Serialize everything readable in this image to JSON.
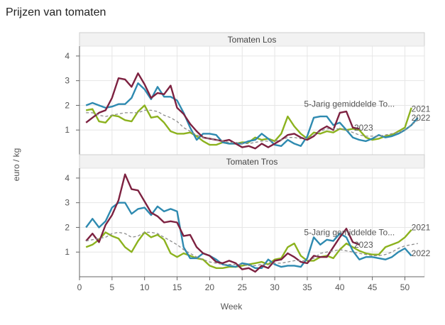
{
  "chart_data": {
    "type": "line",
    "title": "Prijzen van tomaten",
    "xlabel": "Week",
    "ylabel": "euro / kg",
    "xlim": [
      0,
      53
    ],
    "ylim": [
      0,
      4.4
    ],
    "xticks": [
      0,
      5,
      10,
      15,
      20,
      25,
      30,
      35,
      40,
      45,
      50
    ],
    "yticks": [
      1,
      2,
      3,
      4
    ],
    "grid": true,
    "legend": "end-of-line labels",
    "colors": {
      "2021": "#8cb21e",
      "2022": "#2e8ab0",
      "2023": "#7d2140",
      "5-Jarig gemiddelde Tomaten": "#8c8c8c"
    },
    "panels": [
      {
        "name": "Tomaten Los",
        "series": [
          {
            "name": "2021",
            "x": [
              1,
              2,
              3,
              4,
              5,
              6,
              7,
              8,
              9,
              10,
              11,
              12,
              13,
              14,
              15,
              16,
              17,
              18,
              19,
              20,
              21,
              22,
              23,
              24,
              25,
              26,
              27,
              28,
              29,
              30,
              31,
              32,
              33,
              34,
              35,
              36,
              37,
              38,
              39,
              40,
              41,
              42,
              43,
              44,
              45,
              46,
              47,
              48,
              49,
              50,
              51
            ],
            "y": [
              1.8,
              1.85,
              1.35,
              1.3,
              1.6,
              1.55,
              1.4,
              1.35,
              1.75,
              2.0,
              1.5,
              1.55,
              1.3,
              0.95,
              0.85,
              0.85,
              0.9,
              0.75,
              0.55,
              0.4,
              0.4,
              0.5,
              0.45,
              0.45,
              0.5,
              0.5,
              0.7,
              0.6,
              0.65,
              0.55,
              0.85,
              1.55,
              1.15,
              0.85,
              0.65,
              0.9,
              0.85,
              0.95,
              0.9,
              1.05,
              1.0,
              1.05,
              1.0,
              0.7,
              0.6,
              0.65,
              0.75,
              0.8,
              0.95,
              1.1,
              1.9
            ]
          },
          {
            "name": "2022",
            "x": [
              1,
              2,
              3,
              4,
              5,
              6,
              7,
              8,
              9,
              10,
              11,
              12,
              13,
              14,
              15,
              16,
              17,
              18,
              19,
              20,
              21,
              22,
              23,
              24,
              25,
              26,
              27,
              28,
              29,
              30,
              31,
              32,
              33,
              34,
              35,
              36,
              37,
              38,
              39,
              40,
              41,
              42,
              43,
              44,
              45,
              46,
              47,
              48,
              49,
              50,
              51,
              52
            ],
            "y": [
              2.0,
              2.1,
              2.0,
              1.9,
              1.95,
              2.05,
              2.05,
              2.3,
              2.9,
              2.65,
              2.25,
              2.75,
              2.35,
              2.35,
              2.2,
              1.7,
              1.1,
              0.6,
              0.85,
              0.85,
              0.8,
              0.5,
              0.45,
              0.45,
              0.45,
              0.55,
              0.6,
              0.85,
              0.65,
              0.4,
              0.35,
              0.6,
              0.45,
              0.35,
              0.75,
              1.5,
              1.55,
              1.55,
              1.2,
              1.3,
              1.0,
              0.7,
              0.6,
              0.55,
              0.65,
              0.8,
              0.7,
              0.75,
              0.85,
              1.0,
              1.2,
              1.5
            ]
          },
          {
            "name": "2023",
            "x": [
              1,
              2,
              3,
              4,
              5,
              6,
              7,
              8,
              9,
              10,
              11,
              12,
              13,
              14,
              15,
              16,
              17,
              18,
              19,
              20,
              21,
              22,
              23,
              24,
              25,
              26,
              27,
              28,
              29,
              30,
              31,
              32,
              33,
              34,
              35,
              36,
              37,
              38,
              39,
              40,
              41,
              42,
              43,
              44
            ],
            "y": [
              1.3,
              1.5,
              1.7,
              1.8,
              2.3,
              3.1,
              3.05,
              2.75,
              3.3,
              2.85,
              2.3,
              2.5,
              2.45,
              2.8,
              1.9,
              1.65,
              1.25,
              0.95,
              0.7,
              0.65,
              0.6,
              0.55,
              0.6,
              0.45,
              0.3,
              0.35,
              0.25,
              0.45,
              0.3,
              0.45,
              0.6,
              0.8,
              0.85,
              0.7,
              0.6,
              0.75,
              1.0,
              1.15,
              1.0,
              1.7,
              1.75,
              1.1,
              1.05,
              null
            ]
          },
          {
            "name": "5-Jarig gemiddelde Tomaten",
            "x": [
              1,
              2,
              3,
              4,
              5,
              6,
              7,
              8,
              9,
              10,
              11,
              12,
              13,
              14,
              15,
              16,
              17,
              18,
              19,
              20,
              21,
              22,
              23,
              24,
              25,
              26,
              27,
              28,
              29,
              30,
              31,
              32,
              33,
              34,
              35,
              36,
              37,
              38,
              39,
              40,
              41,
              42,
              43,
              44,
              45,
              46,
              47,
              48,
              49,
              50,
              51,
              52
            ],
            "y": [
              1.7,
              1.7,
              1.6,
              1.55,
              1.6,
              1.65,
              1.7,
              1.7,
              1.7,
              1.8,
              1.8,
              1.75,
              1.6,
              1.5,
              1.35,
              1.1,
              0.95,
              0.8,
              0.7,
              0.65,
              0.6,
              0.55,
              0.5,
              0.5,
              0.45,
              0.45,
              0.5,
              0.55,
              0.55,
              0.55,
              0.6,
              0.7,
              0.7,
              0.65,
              0.65,
              0.8,
              0.95,
              1.05,
              1.05,
              1.05,
              1.0,
              0.9,
              0.8,
              0.75,
              0.75,
              0.75,
              0.8,
              0.85,
              0.9,
              1.0,
              1.2,
              1.4
            ]
          }
        ]
      },
      {
        "name": "Tomaten Tros",
        "series": [
          {
            "name": "2021",
            "x": [
              1,
              2,
              3,
              4,
              5,
              6,
              7,
              8,
              9,
              10,
              11,
              12,
              13,
              14,
              15,
              16,
              17,
              18,
              19,
              20,
              21,
              22,
              23,
              24,
              25,
              26,
              27,
              28,
              29,
              30,
              31,
              32,
              33,
              34,
              35,
              36,
              37,
              38,
              39,
              40,
              41,
              42,
              43,
              44,
              45,
              46,
              47,
              48,
              49,
              50,
              51
            ],
            "y": [
              1.2,
              1.3,
              1.5,
              1.8,
              1.65,
              1.55,
              1.2,
              1.0,
              1.45,
              1.8,
              1.6,
              1.7,
              1.5,
              0.95,
              0.8,
              0.95,
              0.85,
              0.75,
              0.7,
              0.45,
              0.35,
              0.35,
              0.4,
              0.4,
              0.45,
              0.5,
              0.55,
              0.6,
              0.5,
              0.7,
              0.75,
              1.2,
              1.35,
              0.85,
              0.65,
              0.65,
              0.8,
              0.85,
              0.75,
              1.1,
              1.35,
              1.2,
              1.05,
              0.95,
              0.9,
              0.9,
              1.2,
              1.3,
              1.4,
              1.6,
              1.9
            ]
          },
          {
            "name": "2022",
            "x": [
              1,
              2,
              3,
              4,
              5,
              6,
              7,
              8,
              9,
              10,
              11,
              12,
              13,
              14,
              15,
              16,
              17,
              18,
              19,
              20,
              21,
              22,
              23,
              24,
              25,
              26,
              27,
              28,
              29,
              30,
              31,
              32,
              33,
              34,
              35,
              36,
              37,
              38,
              39,
              40,
              41,
              42,
              43,
              44,
              45,
              46,
              47,
              48,
              49,
              50,
              51
            ],
            "y": [
              2.0,
              2.35,
              2.0,
              2.25,
              2.8,
              3.0,
              3.0,
              2.55,
              2.75,
              2.8,
              2.5,
              2.85,
              2.65,
              2.75,
              2.65,
              1.2,
              0.75,
              0.75,
              0.95,
              0.85,
              0.7,
              0.5,
              0.45,
              0.4,
              0.55,
              0.5,
              0.35,
              0.35,
              0.7,
              0.5,
              0.4,
              0.45,
              0.45,
              0.4,
              0.75,
              1.6,
              1.3,
              1.5,
              1.45,
              1.75,
              1.6,
              1.05,
              0.7,
              0.8,
              0.8,
              0.75,
              0.7,
              0.8,
              1.0,
              1.15,
              0.85
            ]
          },
          {
            "name": "2023",
            "x": [
              1,
              2,
              3,
              4,
              5,
              6,
              7,
              8,
              9,
              10,
              11,
              12,
              13,
              14,
              15,
              16,
              17,
              18,
              19,
              20,
              21,
              22,
              23,
              24,
              25,
              26,
              27,
              28,
              29,
              30,
              31,
              32,
              33,
              34,
              35,
              36,
              37,
              38,
              39,
              40,
              41,
              42,
              43,
              44
            ],
            "y": [
              1.45,
              1.75,
              1.4,
              2.1,
              2.5,
              3.1,
              4.15,
              3.55,
              3.5,
              3.05,
              2.6,
              2.45,
              2.2,
              2.25,
              2.2,
              1.65,
              1.7,
              1.2,
              0.95,
              0.85,
              0.6,
              0.55,
              0.65,
              0.55,
              0.3,
              0.35,
              0.2,
              0.45,
              0.35,
              0.65,
              0.7,
              0.95,
              0.8,
              0.6,
              0.55,
              0.85,
              0.8,
              0.8,
              1.2,
              1.6,
              1.95,
              1.4,
              1.3,
              null
            ]
          },
          {
            "name": "5-Jarig gemiddelde Tomaten",
            "x": [
              1,
              2,
              3,
              4,
              5,
              6,
              7,
              8,
              9,
              10,
              11,
              12,
              13,
              14,
              15,
              16,
              17,
              18,
              19,
              20,
              21,
              22,
              23,
              24,
              25,
              26,
              27,
              28,
              29,
              30,
              31,
              32,
              33,
              34,
              35,
              36,
              37,
              38,
              39,
              40,
              41,
              42,
              43,
              44,
              45,
              46,
              47,
              48,
              49,
              50,
              51,
              52
            ],
            "y": [
              1.45,
              1.5,
              1.55,
              1.6,
              1.75,
              1.8,
              1.75,
              1.6,
              1.65,
              1.8,
              1.8,
              1.75,
              1.6,
              1.45,
              1.3,
              1.1,
              0.95,
              0.8,
              0.7,
              0.6,
              0.55,
              0.5,
              0.5,
              0.5,
              0.5,
              0.45,
              0.45,
              0.5,
              0.5,
              0.55,
              0.55,
              0.6,
              0.65,
              0.65,
              0.65,
              0.75,
              0.95,
              1.0,
              1.05,
              1.1,
              1.05,
              1.0,
              0.95,
              0.9,
              0.85,
              0.85,
              0.9,
              1.0,
              1.15,
              1.25,
              1.3,
              1.35
            ]
          }
        ]
      }
    ],
    "end_labels": [
      {
        "panel": 0,
        "text": "5-Jarig gemiddelde To...",
        "x": 34.5,
        "y": 2.05,
        "anchor": "start"
      },
      {
        "panel": 0,
        "text": "2023",
        "x": 42.2,
        "y": 1.1,
        "anchor": "start"
      },
      {
        "panel": 0,
        "text": "2021",
        "x": 51.0,
        "y": 1.85,
        "anchor": "start"
      },
      {
        "panel": 0,
        "text": "2022",
        "x": 51.0,
        "y": 1.5,
        "anchor": "start"
      },
      {
        "panel": 1,
        "text": "5-Jarig gemiddelde To...",
        "x": 34.5,
        "y": 1.8,
        "anchor": "start"
      },
      {
        "panel": 1,
        "text": "2023",
        "x": 42.2,
        "y": 1.3,
        "anchor": "start"
      },
      {
        "panel": 1,
        "text": "2021",
        "x": 51.0,
        "y": 2.0,
        "anchor": "start"
      },
      {
        "panel": 1,
        "text": "2022",
        "x": 51.0,
        "y": 0.95,
        "anchor": "start"
      }
    ]
  }
}
